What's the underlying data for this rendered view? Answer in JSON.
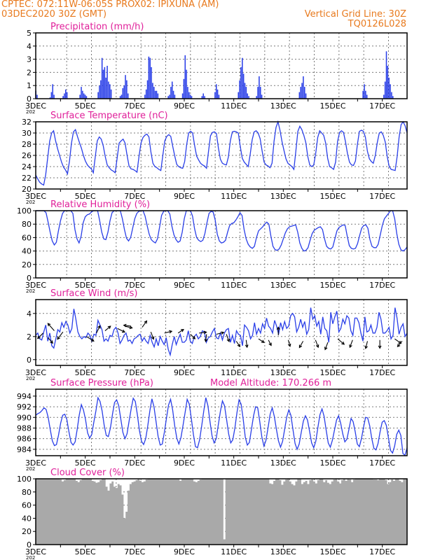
{
  "header": {
    "line1_left": "CPTEC:   072:11W-06:05S   PROX02: IPIXUNA (AM)",
    "line2_left": "03DEC2020 30Z (GMT)",
    "line2_right": "Vertical Grid Line: 30Z",
    "line3_right": "TQ0126L028"
  },
  "colors": {
    "header": "#e87a1e",
    "title": "#e0209a",
    "series": "#2a3fe8",
    "cloud": "#a9a9a9",
    "grid": "#7a7a7a"
  },
  "x_ticks": [
    "3DEC",
    "5DEC",
    "7DEC",
    "9DEC",
    "11DEC",
    "13DEC",
    "15DEC",
    "17DEC"
  ],
  "year_stub": "202",
  "chart_data": [
    {
      "type": "bar",
      "title": "Precipitation (mm/h)",
      "ylim": [
        0,
        5
      ],
      "yticks": [
        "0",
        "1",
        "2",
        "3",
        "4",
        "5"
      ],
      "grid": true,
      "x_start_day": 3.0,
      "x_end_day": 18.0,
      "values": [
        0.6,
        0.3,
        0,
        0,
        0,
        0,
        0,
        0,
        0,
        0,
        0,
        0.1,
        0.5,
        1.1,
        0.3,
        0,
        0,
        0,
        0,
        0,
        0,
        0.2,
        0.4,
        0.7,
        0.5,
        0,
        0,
        0,
        0,
        0,
        0,
        0,
        0,
        0,
        0.3,
        0.9,
        0.6,
        0.4,
        0.3,
        0.2,
        0,
        0,
        0,
        0,
        0,
        0,
        0,
        0,
        0.5,
        1.0,
        1.4,
        3.1,
        2.2,
        2.4,
        1.6,
        2.5,
        1.3,
        1.1,
        0.7,
        0,
        0,
        0,
        0,
        0,
        0,
        0.2,
        0.3,
        0.8,
        1.0,
        1.8,
        1.4,
        0.4,
        0,
        0,
        0,
        0,
        0,
        0,
        0,
        0,
        0,
        0,
        0,
        0,
        0.3,
        0.7,
        1.4,
        3.2,
        3.1,
        2.4,
        1.2,
        0.9,
        0.6,
        0.6,
        0.4,
        0,
        0,
        0,
        0,
        0,
        0,
        0,
        0.2,
        0.3,
        0.9,
        1.3,
        0.6,
        0.3,
        0,
        0,
        0,
        0,
        0,
        0.4,
        1.5,
        3.3,
        2.2,
        0.9,
        0.5,
        0.3,
        0.2,
        0,
        0,
        0,
        0,
        0,
        0,
        0,
        0.2,
        0.4,
        0.2,
        0,
        0,
        0,
        0,
        0,
        0,
        0,
        0.5,
        1.1,
        0.7,
        0.3,
        0,
        0,
        0,
        0,
        0,
        0,
        0,
        0,
        0,
        0,
        0,
        0,
        0,
        0,
        0.5,
        1.4,
        2.4,
        3.1,
        1.9,
        1.2,
        0.9,
        0.4,
        0.2,
        0,
        0,
        0,
        0,
        0,
        0.2,
        0.9,
        1.7,
        0.9,
        0.3,
        0,
        0,
        0,
        0,
        0,
        0,
        0,
        0,
        0,
        0,
        0,
        0,
        0,
        0,
        0,
        0,
        0,
        0,
        0,
        0,
        0,
        0,
        0,
        0,
        0,
        0,
        0,
        0,
        0.5,
        0.9,
        1.2,
        1.7,
        0.9,
        0.4,
        0,
        0,
        0,
        0,
        0,
        0,
        0,
        0,
        0,
        0,
        0,
        0,
        0,
        0,
        0,
        0,
        0,
        0,
        0,
        0,
        0,
        0,
        0,
        0,
        0,
        0,
        0,
        0,
        0,
        0,
        0,
        0,
        0,
        0,
        0,
        0,
        0,
        0,
        0,
        0,
        0,
        0,
        0,
        0.6,
        1.1,
        0.6,
        0.3,
        0,
        0,
        0,
        0,
        0,
        0,
        0,
        0,
        0,
        0,
        0,
        0,
        0.3,
        1.3,
        3.6,
        2.5,
        1.6,
        1.1,
        0.5,
        0.2,
        0,
        0,
        0,
        0,
        0,
        0,
        0,
        0,
        0,
        0,
        0
      ]
    },
    {
      "type": "line",
      "title": "Surface Temperature (nC)",
      "ylim": [
        20,
        32
      ],
      "yticks": [
        "20",
        "22",
        "24",
        "26",
        "28",
        "30",
        "32"
      ],
      "grid": true,
      "x_start_day": 3.0,
      "x_end_day": 18.0,
      "values": [
        22.5,
        21.8,
        21.2,
        20.9,
        20.7,
        22.5,
        25.5,
        28.5,
        30.0,
        30.4,
        28.6,
        27.2,
        26.0,
        24.8,
        23.9,
        23.4,
        22.7,
        25.0,
        28.2,
        30.2,
        30.6,
        29.4,
        28.3,
        27.3,
        26.0,
        25.0,
        24.3,
        23.9,
        23.6,
        22.9,
        25.8,
        28.6,
        29.3,
        28.9,
        27.7,
        25.8,
        24.3,
        23.8,
        23.4,
        23.2,
        22.9,
        25.5,
        28.2,
        28.6,
        28.9,
        28.2,
        26.0,
        24.1,
        23.6,
        23.5,
        23.3,
        23.0,
        25.8,
        28.2,
        29.2,
        29.6,
        29.8,
        29.3,
        26.6,
        24.6,
        24.0,
        23.8,
        23.5,
        23.3,
        26.0,
        28.6,
        29.4,
        29.7,
        29.4,
        27.6,
        25.9,
        24.4,
        24.0,
        23.8,
        23.7,
        24.9,
        27.9,
        30.0,
        30.3,
        30.0,
        27.8,
        25.9,
        25.2,
        24.6,
        24.3,
        24.1,
        23.7,
        26.7,
        29.5,
        30.1,
        30.2,
        29.9,
        27.3,
        25.3,
        24.6,
        24.4,
        24.3,
        25.7,
        28.6,
        30.2,
        30.3,
        30.2,
        30.0,
        27.6,
        25.5,
        24.8,
        24.4,
        24.0,
        26.2,
        28.8,
        30.2,
        30.4,
        30.0,
        29.0,
        26.8,
        24.8,
        24.3,
        24.1,
        23.8,
        24.6,
        28.5,
        31.0,
        32.0,
        30.5,
        28.5,
        26.9,
        25.4,
        24.6,
        24.3,
        24.0,
        23.5,
        26.8,
        30.3,
        31.2,
        30.6,
        29.6,
        28.3,
        25.8,
        24.3,
        24.0,
        24.3,
        26.4,
        29.2,
        30.4,
        30.0,
        29.6,
        28.2,
        25.5,
        24.0,
        23.8,
        23.5,
        24.8,
        28.5,
        30.1,
        30.4,
        30.1,
        28.4,
        26.3,
        24.8,
        24.3,
        24.2,
        25.0,
        28.0,
        30.3,
        30.5,
        30.3,
        29.3,
        26.8,
        25.4,
        24.9,
        24.6,
        26.0,
        28.3,
        30.0,
        30.2,
        29.6,
        28.4,
        25.8,
        24.0,
        23.5,
        23.4,
        23.3,
        25.8,
        29.3,
        31.5,
        32.0,
        31.3,
        30.0
      ]
    },
    {
      "type": "line",
      "title": "Relative Humidity (%)",
      "ylim": [
        0,
        100
      ],
      "yticks": [
        "0",
        "20",
        "40",
        "60",
        "80",
        "100"
      ],
      "grid": true,
      "x_start_day": 3.0,
      "x_end_day": 18.0,
      "values": [
        100,
        100,
        100,
        100,
        100,
        97,
        83,
        68,
        55,
        49,
        53,
        70,
        85,
        96,
        100,
        100,
        100,
        100,
        96,
        72,
        58,
        52,
        62,
        82,
        91,
        94,
        95,
        98,
        100,
        100,
        100,
        85,
        68,
        58,
        57,
        68,
        85,
        97,
        100,
        100,
        100,
        100,
        88,
        72,
        59,
        55,
        60,
        74,
        88,
        96,
        99,
        100,
        100,
        92,
        78,
        65,
        57,
        54,
        52,
        58,
        75,
        93,
        99,
        100,
        100,
        95,
        77,
        64,
        57,
        53,
        55,
        68,
        88,
        100,
        100,
        100,
        92,
        73,
        60,
        56,
        54,
        56,
        66,
        82,
        96,
        99,
        98,
        86,
        65,
        55,
        52,
        53,
        56,
        68,
        78,
        81,
        82,
        86,
        91,
        97,
        93,
        72,
        58,
        50,
        46,
        44,
        47,
        60,
        70,
        73,
        76,
        80,
        83,
        80,
        62,
        47,
        42,
        41,
        43,
        49,
        58,
        67,
        73,
        76,
        77,
        78,
        79,
        68,
        52,
        44,
        40,
        41,
        45,
        56,
        66,
        71,
        73,
        75,
        76,
        72,
        58,
        47,
        44,
        43,
        46,
        58,
        70,
        75,
        77,
        79,
        78,
        62,
        48,
        44,
        43,
        44,
        51,
        63,
        74,
        78,
        79,
        74,
        57,
        47,
        45,
        45,
        50,
        64,
        78,
        88,
        92,
        96,
        100,
        100,
        88,
        66,
        50,
        42,
        40,
        42,
        46
      ]
    },
    {
      "type": "line",
      "title": "Surface Wind (m/s)",
      "ylim": [
        -0.5,
        5.2
      ],
      "yticks": [
        "0",
        "2",
        "4"
      ],
      "grid": true,
      "x_start_day": 3.0,
      "x_end_day": 18.0,
      "values": [
        2.1,
        2.3,
        1.8,
        1.7,
        2.4,
        3.0,
        1.6,
        2.3,
        1.2,
        1.0,
        1.8,
        2.6,
        2.4,
        3.2,
        2.8,
        3.3,
        3.0,
        2.3,
        2.7,
        4.4,
        3.5,
        2.4,
        2.0,
        1.8,
        2.0,
        1.9,
        2.3,
        2.1,
        1.6,
        2.2,
        2.1,
        3.4,
        3.0,
        2.6,
        1.6,
        1.8,
        1.6,
        2.1,
        2.0,
        2.6,
        2.8,
        2.3,
        1.4,
        1.7,
        2.1,
        2.3,
        1.6,
        1.7,
        1.4,
        1.8,
        1.9,
        2.1,
        2.2,
        1.6,
        1.9,
        1.6,
        1.4,
        2.1,
        1.5,
        1.1,
        1.8,
        1.2,
        2.0,
        1.6,
        1.3,
        1.9,
        0.9,
        0.4,
        1.3,
        2.0,
        1.3,
        1.8,
        2.2,
        1.5,
        1.5,
        1.7,
        2.5,
        1.6,
        1.4,
        2.0,
        2.2,
        1.8,
        2.0,
        2.5,
        2.4,
        1.5,
        1.9,
        2.0,
        2.4,
        2.7,
        1.9,
        1.8,
        2.3,
        1.7,
        2.3,
        2.6,
        2.7,
        1.5,
        2.1,
        1.4,
        2.5,
        2.2,
        2.1,
        1.2,
        3.0,
        2.8,
        2.5,
        1.8,
        2.1,
        3.2,
        2.2,
        2.7,
        2.3,
        3.1,
        2.7,
        3.6,
        2.9,
        2.7,
        2.3,
        3.4,
        2.9,
        2.2,
        3.2,
        2.6,
        3.3,
        2.7,
        2.9,
        3.8,
        4.0,
        3.7,
        2.4,
        2.8,
        3.5,
        2.8,
        3.3,
        2.2,
        2.6,
        4.5,
        3.5,
        3.8,
        2.9,
        3.3,
        2.2,
        3.7,
        2.7,
        2.5,
        1.5,
        4.1,
        3.1,
        3.7,
        4.2,
        2.4,
        2.7,
        3.5,
        3.1,
        3.8,
        3.6,
        2.5,
        2.1,
        3.6,
        3.6,
        3.2,
        2.3,
        1.6,
        3.7,
        2.4,
        2.5,
        3.0,
        2.3,
        2.3,
        2.8,
        4.1,
        3.5,
        2.3,
        2.3,
        2.5,
        2.8,
        1.8,
        2.1,
        4.5,
        3.6,
        2.2,
        2.8,
        3.1,
        2.0,
        2.3
      ]
    },
    {
      "type": "line",
      "title": "Surface Pressure (hPa)",
      "annotation": "Model Altitude: 170.266 m",
      "ylim": [
        982.8,
        995.3
      ],
      "yticks": [
        "984",
        "986",
        "988",
        "990",
        "992",
        "994"
      ],
      "grid": true,
      "x_start_day": 3.0,
      "x_end_day": 18.0,
      "values": [
        990.4,
        990.7,
        990.9,
        991.3,
        991.8,
        991.5,
        990.0,
        987.7,
        985.6,
        984.7,
        984.9,
        986.7,
        988.9,
        990.4,
        990.6,
        989.6,
        987.3,
        985.3,
        984.8,
        985.4,
        987.8,
        990.5,
        992.4,
        991.4,
        989.6,
        987.1,
        986.1,
        986.8,
        989.1,
        991.2,
        993.7,
        993.0,
        991.2,
        988.5,
        986.6,
        986.4,
        988.0,
        990.6,
        992.8,
        993.3,
        992.2,
        989.7,
        987.2,
        986.0,
        986.9,
        989.3,
        991.6,
        993.6,
        993.0,
        990.5,
        987.5,
        985.5,
        984.9,
        986.0,
        988.4,
        991.2,
        993.5,
        992.0,
        989.2,
        986.4,
        984.8,
        985.0,
        987.2,
        989.8,
        992.3,
        993.4,
        991.4,
        988.4,
        986.1,
        985.0,
        986.2,
        988.5,
        990.9,
        993.4,
        992.5,
        989.8,
        986.8,
        984.5,
        984.3,
        985.8,
        988.4,
        991.2,
        993.7,
        992.2,
        989.2,
        986.5,
        985.2,
        986.0,
        988.6,
        991.1,
        993.1,
        992.2,
        989.6,
        986.9,
        985.2,
        985.8,
        988.0,
        990.9,
        993.3,
        992.5,
        989.7,
        986.3,
        984.8,
        985.3,
        987.8,
        990.3,
        992.0,
        991.8,
        989.2,
        986.3,
        984.6,
        985.7,
        988.1,
        990.6,
        991.8,
        990.2,
        987.8,
        985.6,
        984.4,
        985.5,
        987.8,
        990.1,
        991.4,
        990.4,
        987.7,
        985.1,
        984.0,
        985.0,
        987.2,
        989.3,
        990.3,
        989.5,
        987.4,
        985.2,
        984.3,
        985.5,
        988.1,
        990.5,
        991.6,
        990.2,
        987.6,
        985.2,
        984.4,
        985.7,
        987.6,
        989.5,
        990.3,
        988.9,
        986.9,
        985.4,
        985.9,
        987.8,
        989.8,
        989.2,
        987.3,
        985.0,
        984.5,
        986.0,
        988.1,
        990.0,
        989.9,
        988.4,
        986.0,
        984.2,
        983.9,
        985.1,
        987.3,
        989.1,
        989.4,
        988.5,
        986.2,
        983.8,
        983.3,
        984.6,
        986.8,
        987.6,
        986.6,
        983.2,
        982.9,
        984.3
      ]
    },
    {
      "type": "bar",
      "title": "Cloud Cover (%)",
      "ylim": [
        0,
        100
      ],
      "yticks": [
        "0",
        "20",
        "40",
        "60",
        "80",
        "100"
      ],
      "grid": true,
      "x_start_day": 3.0,
      "x_end_day": 18.0,
      "values": [
        100,
        100,
        100,
        100,
        100,
        100,
        100,
        100,
        100,
        100,
        100,
        100,
        99,
        96,
        98,
        100,
        100,
        100,
        100,
        100,
        97,
        95,
        98,
        100,
        100,
        100,
        100,
        100,
        97,
        96,
        94,
        95,
        98,
        100,
        100,
        88,
        82,
        93,
        96,
        88,
        86,
        92,
        90,
        76,
        40,
        50,
        82,
        92,
        95,
        96,
        98,
        100,
        97,
        95,
        96,
        99,
        100,
        100,
        100,
        100,
        100,
        100,
        100,
        100,
        100,
        100,
        100,
        100,
        100,
        100,
        100,
        100,
        97,
        100,
        100,
        100,
        100,
        100,
        100,
        96,
        95,
        97,
        99,
        100,
        100,
        100,
        100,
        100,
        100,
        100,
        100,
        100,
        100,
        100,
        8,
        100,
        100,
        100,
        100,
        100,
        100,
        100,
        100,
        100,
        100,
        100,
        100,
        100,
        100,
        100,
        100,
        100,
        100,
        100,
        100,
        100,
        100,
        93,
        92,
        97,
        100,
        100,
        98,
        91,
        96,
        99,
        100,
        96,
        92,
        90,
        96,
        100,
        100,
        92,
        95,
        97,
        92,
        98,
        99,
        96,
        93,
        98,
        100,
        100,
        95,
        98,
        94,
        92,
        96,
        99,
        100,
        96,
        93,
        98,
        100,
        97,
        100,
        99,
        95,
        99,
        100,
        100,
        100,
        100,
        100,
        100,
        100,
        100,
        100,
        99,
        99,
        98,
        100,
        100,
        100,
        98,
        92,
        95,
        99,
        97,
        100,
        100,
        97,
        95,
        100,
        100
      ]
    }
  ]
}
